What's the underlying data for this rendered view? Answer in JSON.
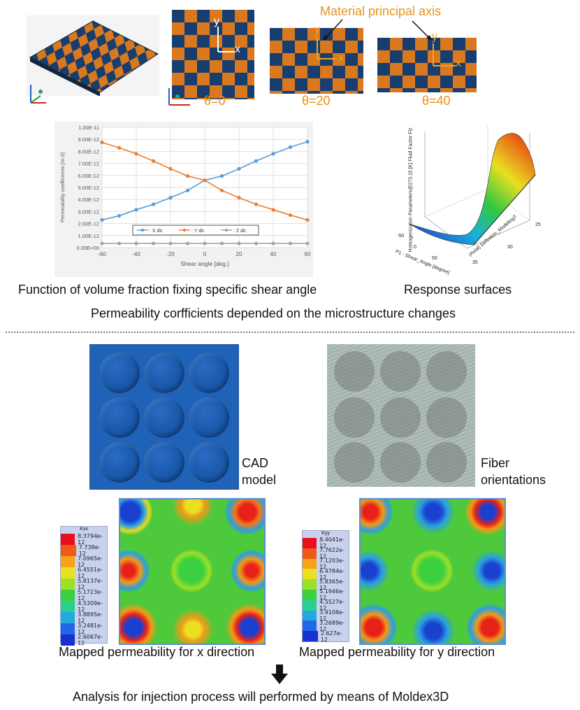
{
  "top": {
    "annotation": "Material principal axis",
    "theta_labels": [
      "θ=0",
      "θ=20",
      "θ=40"
    ],
    "axis_x": "x",
    "axis_y": "y"
  },
  "chart_data": {
    "type": "line",
    "ylabel": "Permeability coefficients [m-2]",
    "xlabel": "Shear angle [deg.]",
    "x": [
      -60,
      -50,
      -40,
      -30,
      -20,
      -10,
      0,
      10,
      20,
      30,
      40,
      50,
      60
    ],
    "xticks": [
      "-60",
      "-40",
      "-20",
      "0",
      "20",
      "40",
      "60"
    ],
    "yticks": [
      "0.00E+00",
      "1.00E-12",
      "2.00E-12",
      "3.00E-12",
      "4.00E-12",
      "5.00E-12",
      "6.00E-12",
      "7.00E-12",
      "8.00E-12",
      "9.00E-12",
      "1.00E-11"
    ],
    "ylim": [
      0,
      1e-11
    ],
    "xlim": [
      -60,
      60
    ],
    "grid": true,
    "legend_position": "bottom-center",
    "series": [
      {
        "name": ": X dir.",
        "color": "#5b9bd5",
        "values": [
          2.3e-12,
          2.65e-12,
          3.15e-12,
          3.6e-12,
          4.15e-12,
          4.75e-12,
          5.6e-12,
          5.95e-12,
          6.55e-12,
          7.2e-12,
          7.8e-12,
          8.35e-12,
          8.8e-12
        ]
      },
      {
        "name": ": Y dir.",
        "color": "#ed7d31",
        "values": [
          8.75e-12,
          8.3e-12,
          7.8e-12,
          7.2e-12,
          6.55e-12,
          5.95e-12,
          5.6e-12,
          4.75e-12,
          4.15e-12,
          3.6e-12,
          3.15e-12,
          2.7e-12,
          2.3e-12
        ]
      },
      {
        "name": ": Z dir.",
        "color": "#a5a5a5",
        "values": [
          3.5e-13,
          3.5e-13,
          3.5e-13,
          3.5e-13,
          3.5e-13,
          3.5e-13,
          3.5e-13,
          3.5e-13,
          3.5e-13,
          3.5e-13,
          3.5e-13,
          3.5e-13,
          3.5e-13
        ]
      }
    ]
  },
  "surface": {
    "zlabel": "Homogenization Parameters@273.15 [K] Fluid Factor Flz",
    "xlabel": "P1 - Shear_Angle [degree]",
    "ylabel": "(Axial) Definition_ModelingT",
    "ticks_a": [
      "-50",
      "0",
      "50"
    ],
    "ticks_b": [
      "25",
      "30",
      "35"
    ]
  },
  "captions": {
    "chart": "Function of volume fraction fixing specific shear angle",
    "surface": "Response surfaces",
    "top_summary": "Permeability corfficients depended on the microstructure changes",
    "cad": "CAD\nmodel",
    "cad_line1": "CAD",
    "cad_line2": "model",
    "fiber_line1": "Fiber",
    "fiber_line2": "orientations",
    "perm_x": "Mapped permeability for x direction",
    "perm_y": "Mapped permeability for y direction",
    "bottom": "Analysis for injection process will performed by means of Moldex3D"
  },
  "legend_x": {
    "title": "Kxx",
    "values": [
      "8.3794e-12",
      "7.738e-12",
      "7.0965e-12",
      "6.4551e-12",
      "5.8137e-12",
      "5.1723e-12",
      "4.5309e-12",
      "3.8895e-12",
      "3.2481e-12",
      "2.6067e-12"
    ]
  },
  "legend_y": {
    "title": "Kyy",
    "values": [
      "8.4041e-12",
      "7.7622e-12",
      "7.1203e-12",
      "6.4784e-12",
      "5.8365e-12",
      "5.1946e-12",
      "4.5527e-12",
      "3.9108e-12",
      "3.2689e-12",
      "2.627e-12"
    ]
  },
  "legend_colors": [
    "#e8101a",
    "#f05a18",
    "#f7a21a",
    "#e8e020",
    "#9ce028",
    "#3cd040",
    "#2ad090",
    "#24a8e0",
    "#2068e8",
    "#1830d0"
  ]
}
